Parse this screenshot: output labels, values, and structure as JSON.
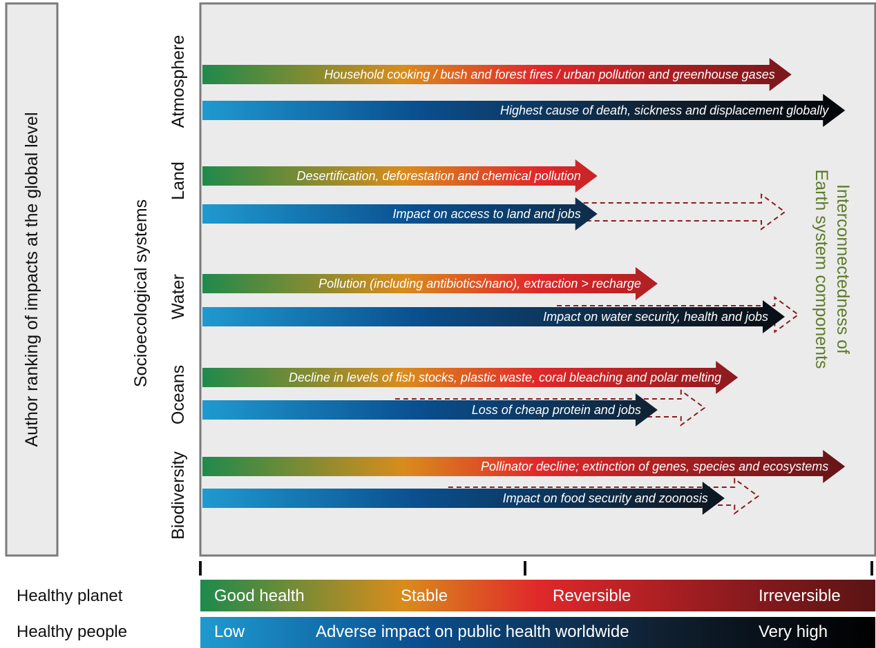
{
  "left_box": {
    "label": "Author ranking of impacts at the global level"
  },
  "axis_label": "Socioecological systems",
  "side_label": {
    "line1": "Interconnectedness of",
    "line2": "Earth system components"
  },
  "systems": [
    {
      "name": "Atmosphere",
      "planet": {
        "text": "Household cooking / bush and forest fires / urban pollution and greenhouse gases",
        "level": 0.88
      },
      "people": {
        "text": "Highest cause of death, sickness and displacement globally",
        "level": 0.96
      }
    },
    {
      "name": "Land",
      "planet": {
        "text": "Desertification, deforestation and chemical pollution",
        "level": 0.59
      },
      "people": {
        "text": "Impact on access to land and jobs",
        "level": 0.59,
        "potential_level": 0.87
      }
    },
    {
      "name": "Water",
      "planet": {
        "text": "Pollution (including antibiotics/nano), extraction > recharge",
        "level": 0.68
      },
      "people": {
        "text": "Impact on water security, health and jobs",
        "level": 0.87,
        "potential_level": 0.89
      }
    },
    {
      "name": "Oceans",
      "planet": {
        "text": "Decline in levels of fish stocks, plastic waste, coral bleaching and polar melting",
        "level": 0.8
      },
      "people": {
        "text": "Loss of cheap protein and jobs",
        "level": 0.68,
        "potential_level": 0.75
      }
    },
    {
      "name": "Biodiversity",
      "planet": {
        "text": "Pollinator decline; extinction of genes, species and ecosystems",
        "level": 0.96
      },
      "people": {
        "text": "Impact on food security and zoonosis",
        "level": 0.78,
        "potential_level": 0.83
      }
    }
  ],
  "scales": {
    "planet": {
      "row_label": "Healthy planet",
      "labels": [
        "Good health",
        "Stable",
        "Reversible",
        "Irreversible"
      ]
    },
    "people": {
      "row_label": "Healthy people",
      "labels": [
        "Low",
        "Adverse impact on public health worldwide",
        "Very high"
      ]
    }
  },
  "colors": {
    "planet_gradient": [
      "#1e8a4c",
      "#d98c1c",
      "#e0282a",
      "#8b1a1e",
      "#5a1414"
    ],
    "people_gradient": [
      "#1f9ad0",
      "#0a4f8f",
      "#102030",
      "#000000"
    ],
    "dashed_outline": "#8b1a1e",
    "side_label": "#5e7a2a",
    "panel_background": "#ebebeb",
    "panel_border": "#7a7a7a"
  }
}
